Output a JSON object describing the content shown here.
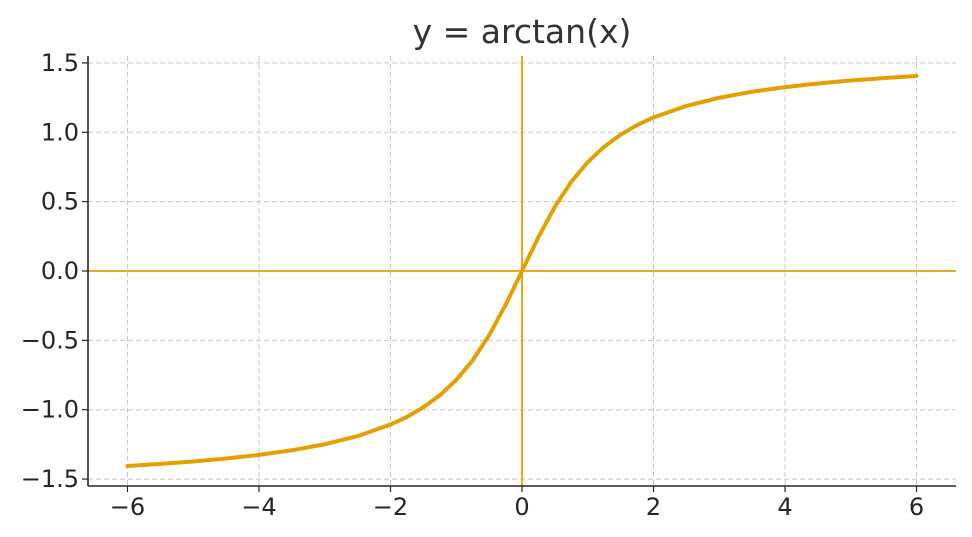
{
  "chart_data": {
    "type": "line",
    "title": "y = arctan(x)",
    "xlabel": "",
    "ylabel": "",
    "xlim": [
      -6.6,
      6.6
    ],
    "ylim": [
      -1.55,
      1.55
    ],
    "grid": true,
    "x_ticks": [
      -6,
      -4,
      -2,
      0,
      2,
      4,
      6
    ],
    "x_tick_labels": [
      "−6",
      "−4",
      "−2",
      "0",
      "2",
      "4",
      "6"
    ],
    "y_ticks": [
      -1.5,
      -1.0,
      -0.5,
      0.0,
      0.5,
      1.0,
      1.5
    ],
    "y_tick_labels": [
      "−1.5",
      "−1.0",
      "−0.5",
      "0.0",
      "0.5",
      "1.0",
      "1.5"
    ],
    "reference_lines": {
      "x": 0,
      "y": 0,
      "color": "#e6a000"
    },
    "series": [
      {
        "color": "#e69f00",
        "x": [
          -6,
          -5.5,
          -5,
          -4.5,
          -4,
          -3.5,
          -3,
          -2.5,
          -2,
          -1.75,
          -1.5,
          -1.25,
          -1,
          -0.75,
          -0.5,
          -0.25,
          0,
          0.25,
          0.5,
          0.75,
          1,
          1.25,
          1.5,
          1.75,
          2,
          2.5,
          3,
          3.5,
          4,
          4.5,
          5,
          5.5,
          6
        ],
        "y": [
          -1.4056,
          -1.3909,
          -1.3734,
          -1.3521,
          -1.3258,
          -1.2925,
          -1.249,
          -1.1903,
          -1.1071,
          -1.0517,
          -0.9828,
          -0.8961,
          -0.7854,
          -0.6435,
          -0.4636,
          -0.245,
          0,
          0.245,
          0.4636,
          0.6435,
          0.7854,
          0.8961,
          0.9828,
          1.0517,
          1.1071,
          1.1903,
          1.249,
          1.2925,
          1.3258,
          1.3521,
          1.3734,
          1.3909,
          1.4056
        ]
      }
    ]
  }
}
